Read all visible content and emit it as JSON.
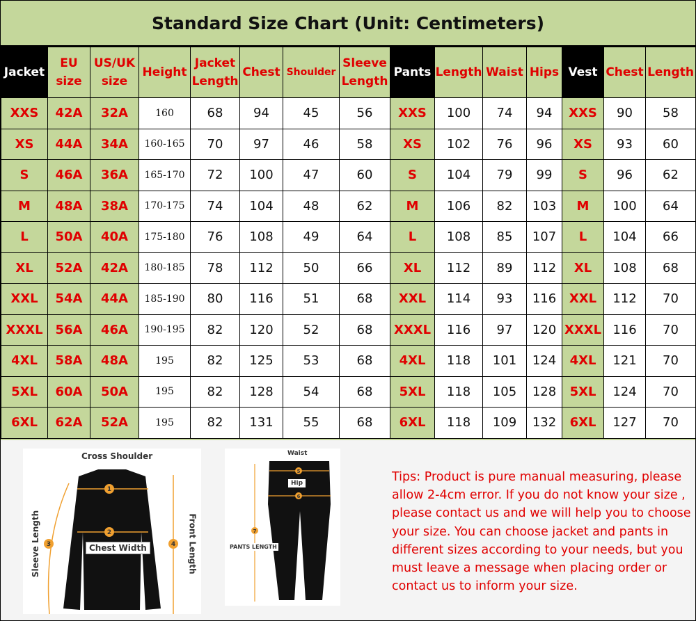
{
  "title": "Standard Size Chart (Unit: Centimeters)",
  "headers": {
    "jacket": "Jacket",
    "eu": "EU size",
    "us": "US/UK size",
    "height": "Height",
    "jacket_length": "Jacket Length",
    "chest": "Chest",
    "shoulder": "Shoulder",
    "sleeve": "Sleeve Length",
    "pants": "Pants",
    "pants_length": "Length",
    "waist": "Waist",
    "hips": "Hips",
    "vest": "Vest",
    "vest_chest": "Chest",
    "vest_length": "Length"
  },
  "rows": [
    [
      "XXS",
      "42A",
      "32A",
      "160",
      "68",
      "94",
      "45",
      "56",
      "XXS",
      "100",
      "74",
      "94",
      "XXS",
      "90",
      "58"
    ],
    [
      "XS",
      "44A",
      "34A",
      "160-165",
      "70",
      "97",
      "46",
      "58",
      "XS",
      "102",
      "76",
      "96",
      "XS",
      "93",
      "60"
    ],
    [
      "S",
      "46A",
      "36A",
      "165-170",
      "72",
      "100",
      "47",
      "60",
      "S",
      "104",
      "79",
      "99",
      "S",
      "96",
      "62"
    ],
    [
      "M",
      "48A",
      "38A",
      "170-175",
      "74",
      "104",
      "48",
      "62",
      "M",
      "106",
      "82",
      "103",
      "M",
      "100",
      "64"
    ],
    [
      "L",
      "50A",
      "40A",
      "175-180",
      "76",
      "108",
      "49",
      "64",
      "L",
      "108",
      "85",
      "107",
      "L",
      "104",
      "66"
    ],
    [
      "XL",
      "52A",
      "42A",
      "180-185",
      "78",
      "112",
      "50",
      "66",
      "XL",
      "112",
      "89",
      "112",
      "XL",
      "108",
      "68"
    ],
    [
      "XXL",
      "54A",
      "44A",
      "185-190",
      "80",
      "116",
      "51",
      "68",
      "XXL",
      "114",
      "93",
      "116",
      "XXL",
      "112",
      "70"
    ],
    [
      "XXXL",
      "56A",
      "46A",
      "190-195",
      "82",
      "120",
      "52",
      "68",
      "XXXL",
      "116",
      "97",
      "120",
      "XXXL",
      "116",
      "70"
    ],
    [
      "4XL",
      "58A",
      "48A",
      "195",
      "82",
      "125",
      "53",
      "68",
      "4XL",
      "118",
      "101",
      "124",
      "4XL",
      "121",
      "70"
    ],
    [
      "5XL",
      "60A",
      "50A",
      "195",
      "82",
      "128",
      "54",
      "68",
      "5XL",
      "118",
      "105",
      "128",
      "5XL",
      "124",
      "70"
    ],
    [
      "6XL",
      "62A",
      "52A",
      "195",
      "82",
      "131",
      "55",
      "68",
      "6XL",
      "118",
      "109",
      "132",
      "6XL",
      "127",
      "70"
    ]
  ],
  "diagram": {
    "cross_shoulder": "Cross Shoulder",
    "chest_width": "Chest Width",
    "sleeve_length": "Sleeve Length",
    "front_length": "Front Length",
    "waist": "Waist",
    "hip": "Hip",
    "pants_length": "PANTS LENGTH",
    "markers": [
      "1",
      "2",
      "3",
      "4",
      "5",
      "6",
      "7"
    ]
  },
  "tips": "Tips: Product is pure manual measuring, please allow 2-4cm error. If you do not know your size , please contact us and we will help you to choose your size. You can choose jacket and pants in different sizes according to your needs, but you must leave a message when placing order or contact us to inform your size.",
  "colors": {
    "green": "#c4d79b",
    "red": "#e00000",
    "orange": "#f0a030"
  }
}
